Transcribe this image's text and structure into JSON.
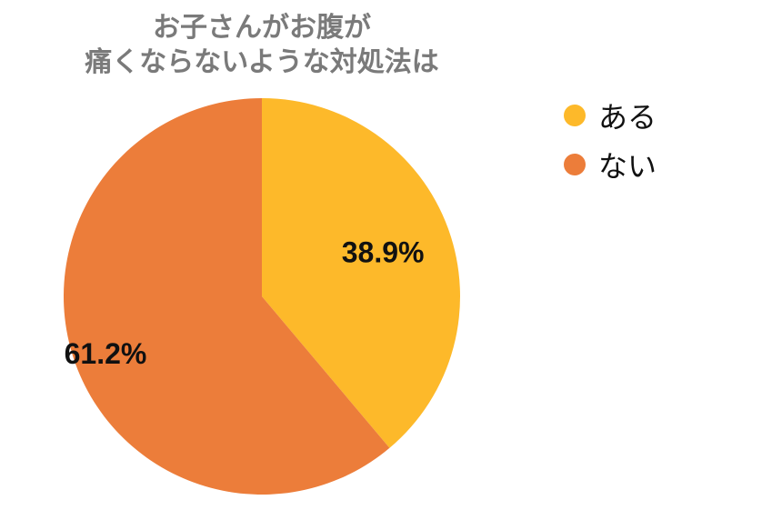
{
  "chart_data": {
    "type": "pie",
    "title_lines": [
      "お子さんがお腹が",
      "痛くならないような対処法は"
    ],
    "categories": [
      "ある",
      "ない"
    ],
    "values": [
      38.9,
      61.2
    ],
    "labels": [
      "38.9%",
      "61.2%"
    ],
    "colors": [
      "#FDB92A",
      "#EC7D3A"
    ],
    "start_angle": "12 o'clock",
    "direction": "clockwise",
    "legend_position": "right"
  }
}
